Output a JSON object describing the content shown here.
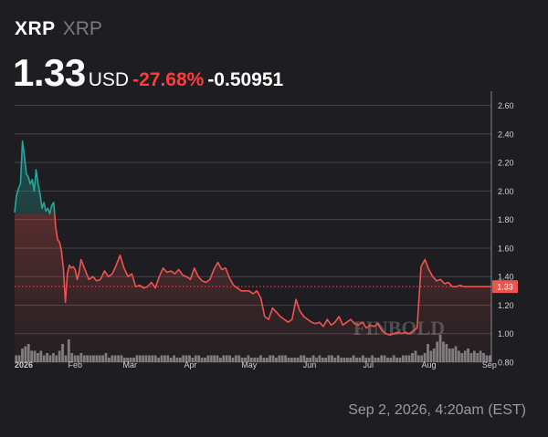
{
  "header": {
    "symbol": "XRP",
    "name": "XRP",
    "price": "1.33",
    "currency": "USD",
    "change_pct": "-27.68%",
    "change_abs": "-0.50951"
  },
  "timestamp": "Sep 2, 2026, 4:20am (EST)",
  "watermark": "FINBOLD",
  "colors": {
    "background": "#1e1e22",
    "up_line": "#26a69a",
    "down_line": "#ef5350",
    "price_badge": "#ef5350",
    "volume": "#9e9e9e",
    "grid": "#444448",
    "axis_text": "#d0d0d0"
  },
  "chart_data": {
    "type": "area",
    "title": "",
    "xlabel": "",
    "ylabel": "",
    "ylim": [
      0.8,
      2.7
    ],
    "yticks": [
      0.8,
      1.0,
      1.2,
      1.4,
      1.6,
      1.8,
      2.0,
      2.2,
      2.4,
      2.6
    ],
    "ytick_labels": [
      "0.80",
      "1.00",
      "1.20",
      "1.40",
      "1.60",
      "1.80",
      "2.00",
      "2.20",
      "2.40",
      "2.60"
    ],
    "xlim": [
      0,
      244
    ],
    "xticks": [
      0,
      31,
      59,
      90,
      120,
      151,
      181,
      212,
      243
    ],
    "xtick_labels": [
      "2026",
      "Feb",
      "Mar",
      "Apr",
      "May",
      "Jun",
      "Jul",
      "Aug",
      "Sep"
    ],
    "current_price": 1.33,
    "current_price_label": "1.33",
    "baseline": 1.84,
    "grid": true,
    "series": [
      {
        "x": [
          0,
          1,
          2,
          3,
          4,
          5,
          6,
          7,
          8,
          9,
          10,
          11,
          12,
          13,
          14,
          15,
          16,
          17,
          18,
          19,
          20,
          21,
          22,
          23,
          24,
          25,
          26,
          27,
          28,
          29,
          30,
          31,
          32,
          33,
          34,
          36,
          38,
          40,
          42,
          44,
          46,
          48,
          50,
          52,
          54,
          56,
          58,
          60,
          62,
          64,
          66,
          68,
          70,
          72,
          74,
          76,
          78,
          80,
          82,
          84,
          86,
          88,
          90,
          92,
          94,
          96,
          98,
          100,
          102,
          104,
          106,
          108,
          110,
          112,
          114,
          116,
          118,
          120,
          122,
          124,
          126,
          128,
          130,
          132,
          134,
          136,
          138,
          140,
          142,
          144,
          146,
          148,
          150,
          152,
          154,
          156,
          158,
          160,
          162,
          164,
          166,
          168,
          170,
          172,
          174,
          176,
          178,
          180,
          182,
          184,
          186,
          188,
          190,
          192,
          194,
          196,
          198,
          200,
          202,
          204,
          206,
          208,
          210,
          212,
          214,
          216,
          218,
          220,
          222,
          224,
          226,
          228,
          230,
          232,
          234,
          236,
          238,
          240,
          242,
          244
        ],
        "y": [
          1.85,
          1.97,
          2.02,
          2.05,
          2.35,
          2.25,
          2.12,
          2.1,
          2.05,
          2.08,
          2.0,
          2.15,
          2.05,
          1.98,
          1.88,
          1.92,
          1.86,
          1.88,
          1.84,
          1.9,
          1.92,
          1.75,
          1.66,
          1.64,
          1.58,
          1.45,
          1.22,
          1.42,
          1.48,
          1.46,
          1.47,
          1.45,
          1.38,
          1.43,
          1.52,
          1.45,
          1.38,
          1.4,
          1.37,
          1.38,
          1.44,
          1.4,
          1.42,
          1.48,
          1.55,
          1.46,
          1.4,
          1.42,
          1.33,
          1.34,
          1.32,
          1.33,
          1.36,
          1.32,
          1.4,
          1.46,
          1.43,
          1.44,
          1.42,
          1.45,
          1.41,
          1.4,
          1.38,
          1.46,
          1.4,
          1.37,
          1.36,
          1.38,
          1.45,
          1.5,
          1.45,
          1.46,
          1.39,
          1.34,
          1.32,
          1.3,
          1.3,
          1.3,
          1.28,
          1.3,
          1.25,
          1.12,
          1.1,
          1.18,
          1.15,
          1.12,
          1.1,
          1.08,
          1.1,
          1.24,
          1.16,
          1.12,
          1.1,
          1.08,
          1.07,
          1.08,
          1.05,
          1.1,
          1.06,
          1.08,
          1.12,
          1.06,
          1.08,
          1.1,
          1.07,
          1.06,
          1.08,
          1.04,
          1.06,
          1.05,
          1.07,
          1.02,
          1.0,
          0.99,
          1.0,
          1.01,
          1.0,
          1.01,
          1.0,
          1.02,
          1.04,
          1.47,
          1.52,
          1.45,
          1.4,
          1.37,
          1.38,
          1.35,
          1.36,
          1.33,
          1.33,
          1.34,
          1.33,
          1.33,
          1.33,
          1.33,
          1.33,
          1.33,
          1.33,
          1.33
        ]
      }
    ],
    "volume": [
      3,
      3,
      6,
      7,
      8,
      5,
      5,
      4,
      5,
      3,
      4,
      3,
      4,
      3,
      5,
      8,
      3,
      10,
      4,
      3,
      3,
      4,
      3,
      3,
      3,
      3,
      3,
      3,
      3,
      4,
      2,
      3,
      3,
      3,
      3,
      2,
      2,
      2,
      2,
      3,
      3,
      3,
      3,
      3,
      3,
      3,
      2,
      3,
      3,
      3,
      2,
      3,
      2,
      2,
      3,
      3,
      3,
      2,
      3,
      3,
      2,
      2,
      3,
      3,
      3,
      3,
      2,
      3,
      3,
      3,
      2,
      3,
      3,
      2,
      2,
      3,
      2,
      2,
      2,
      3,
      2,
      2,
      3,
      3,
      2,
      3,
      3,
      3,
      2,
      2,
      2,
      2,
      3,
      3,
      2,
      2,
      3,
      2,
      3,
      2,
      2,
      3,
      3,
      2,
      3,
      2,
      2,
      2,
      2,
      3,
      2,
      2,
      3,
      2,
      2,
      3,
      2,
      2,
      3,
      3,
      2,
      2,
      3,
      2,
      2,
      3,
      3,
      3,
      4,
      5,
      3,
      3,
      4,
      8,
      5,
      6,
      9,
      12,
      9,
      8,
      6,
      6,
      7,
      5,
      4,
      5,
      6,
      4,
      5,
      4,
      5,
      4,
      3,
      3
    ]
  }
}
